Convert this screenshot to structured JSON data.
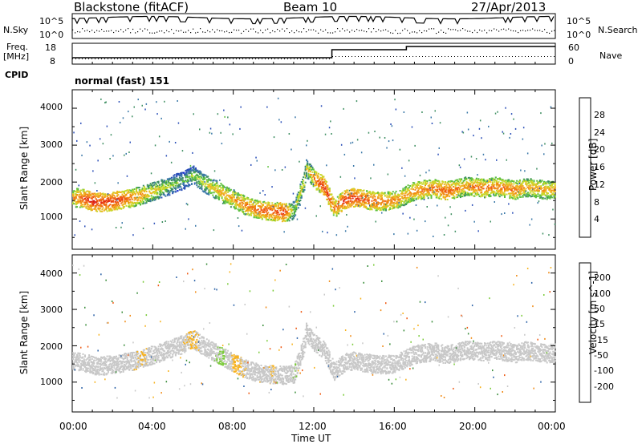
{
  "header": {
    "title": "Blackstone (fitACF)",
    "beam": "Beam 10",
    "date": "27/Apr/2013"
  },
  "top_panels": {
    "nsky_label": "N.Sky",
    "nsearch_label": "N.Search",
    "freq_label_1": "Freq.",
    "freq_label_2": "[MHz]",
    "nave_label": "Nave",
    "cpid_label": "CPID",
    "cpid_value": "normal (fast) 151",
    "noise_ticks_left": [
      "10^5",
      "10^0"
    ],
    "noise_ticks_right": [
      "10^5",
      "10^0"
    ],
    "freq_ticks": [
      "18",
      "8"
    ],
    "nave_ticks": [
      "60",
      "0"
    ]
  },
  "chart_data": [
    {
      "type": "heatmap",
      "title": "",
      "xlabel": "Time UT",
      "ylabel": "Slant Range [km]",
      "xlim": [
        "00:00",
        "24:00"
      ],
      "ylim": [
        180,
        4500
      ],
      "x_ticks": [
        "00:00",
        "04:00",
        "08:00",
        "12:00",
        "16:00",
        "20:00",
        "00:00"
      ],
      "y_ticks": [
        "1000",
        "2000",
        "3000",
        "4000"
      ],
      "colorbar": {
        "label": "Power [dB]",
        "ticks": [
          "4",
          "8",
          "12",
          "16",
          "20",
          "24",
          "28"
        ],
        "range": [
          0,
          30
        ],
        "colors": [
          "#0b22d6",
          "#2b4fb8",
          "#3a78a8",
          "#3f8f62",
          "#5dc03d",
          "#c8d82a",
          "#f0b421",
          "#f08a14",
          "#f05a12",
          "#e2261a",
          "#d10f12"
        ]
      },
      "series": [
        {
          "values": [
            [
              0.0,
              1600,
              20
            ],
            [
              0.5,
              1580,
              24
            ],
            [
              1.0,
              1480,
              27
            ],
            [
              1.5,
              1470,
              25
            ],
            [
              2.0,
              1500,
              26
            ],
            [
              2.5,
              1550,
              24
            ],
            [
              3.0,
              1600,
              22
            ],
            [
              3.5,
              1680,
              20
            ],
            [
              4.0,
              1770,
              18
            ],
            [
              4.5,
              1860,
              16
            ],
            [
              5.0,
              1960,
              14
            ],
            [
              5.5,
              2070,
              12
            ],
            [
              6.0,
              2200,
              14
            ],
            [
              6.5,
              2000,
              16
            ],
            [
              7.0,
              1850,
              18
            ],
            [
              7.5,
              1700,
              20
            ],
            [
              8.0,
              1550,
              20
            ],
            [
              8.5,
              1400,
              22
            ],
            [
              9.0,
              1300,
              22
            ],
            [
              9.5,
              1250,
              24
            ],
            [
              10.0,
              1220,
              24
            ],
            [
              10.5,
              1200,
              26
            ],
            [
              11.0,
              1250,
              14
            ],
            [
              11.5,
              2050,
              18
            ],
            [
              11.6,
              2400,
              16
            ],
            [
              12.0,
              2100,
              22
            ],
            [
              12.5,
              1900,
              26
            ],
            [
              13.0,
              1300,
              22
            ],
            [
              13.5,
              1550,
              26
            ],
            [
              14.0,
              1600,
              26
            ],
            [
              14.5,
              1550,
              24
            ],
            [
              15.0,
              1500,
              24
            ],
            [
              15.5,
              1500,
              22
            ],
            [
              16.0,
              1520,
              22
            ],
            [
              16.5,
              1650,
              20
            ],
            [
              17.0,
              1780,
              22
            ],
            [
              17.5,
              1820,
              22
            ],
            [
              18.0,
              1850,
              22
            ],
            [
              18.5,
              1780,
              24
            ],
            [
              19.0,
              1820,
              22
            ],
            [
              19.5,
              1900,
              20
            ],
            [
              20.0,
              1880,
              22
            ],
            [
              20.5,
              1850,
              22
            ],
            [
              21.0,
              1900,
              22
            ],
            [
              21.5,
              1850,
              22
            ],
            [
              22.0,
              1800,
              22
            ],
            [
              22.5,
              1880,
              20
            ],
            [
              23.0,
              1850,
              20
            ],
            [
              23.5,
              1800,
              20
            ],
            [
              24.0,
              1820,
              20
            ]
          ]
        }
      ]
    },
    {
      "type": "heatmap",
      "title": "",
      "xlabel": "Time UT",
      "ylabel": "Slant Range [km]",
      "xlim": [
        "00:00",
        "24:00"
      ],
      "ylim": [
        180,
        4500
      ],
      "x_ticks": [
        "00:00",
        "04:00",
        "08:00",
        "12:00",
        "16:00",
        "20:00",
        "00:00"
      ],
      "y_ticks": [
        "1000",
        "2000",
        "3000",
        "4000"
      ],
      "colorbar": {
        "label": "Velocity [m s^-1]",
        "ticks": [
          "200",
          "100",
          "50",
          "15",
          "-15",
          "-50",
          "-100",
          "-200"
        ],
        "range": [
          -250,
          250
        ],
        "colors": [
          "#1f2ea8",
          "#2d63a8",
          "#3a8d3a",
          "#7bcb3a",
          "#c8c8c8",
          "#c8c8c8",
          "#f7b21e",
          "#f08a14",
          "#ef5a13",
          "#e81e12"
        ]
      },
      "series": [
        {
          "values": [
            [
              0.0,
              1650,
              -15
            ],
            [
              1.0,
              1500,
              -10
            ],
            [
              2.0,
              1550,
              -10
            ],
            [
              3.0,
              1600,
              -30
            ],
            [
              3.5,
              2800,
              -50
            ],
            [
              4.0,
              1750,
              -10
            ],
            [
              5.0,
              1900,
              -10
            ],
            [
              6.0,
              1400,
              -60
            ],
            [
              7.0,
              2000,
              30
            ],
            [
              7.5,
              2050,
              60
            ],
            [
              8.0,
              1300,
              -70
            ],
            [
              9.0,
              1500,
              -10
            ],
            [
              10.0,
              1250,
              -40
            ],
            [
              11.0,
              2200,
              40
            ],
            [
              12.0,
              1900,
              -5
            ],
            [
              13.0,
              1250,
              -30
            ],
            [
              14.0,
              1400,
              -20
            ],
            [
              15.0,
              1500,
              -10
            ],
            [
              16.0,
              1550,
              -10
            ],
            [
              17.0,
              1750,
              -5
            ],
            [
              18.0,
              1850,
              -5
            ],
            [
              19.0,
              1850,
              -5
            ],
            [
              20.0,
              1900,
              -5
            ],
            [
              21.0,
              1880,
              -5
            ],
            [
              22.0,
              1850,
              -5
            ],
            [
              23.0,
              1820,
              -5
            ],
            [
              24.0,
              1800,
              -5
            ]
          ]
        }
      ]
    }
  ]
}
